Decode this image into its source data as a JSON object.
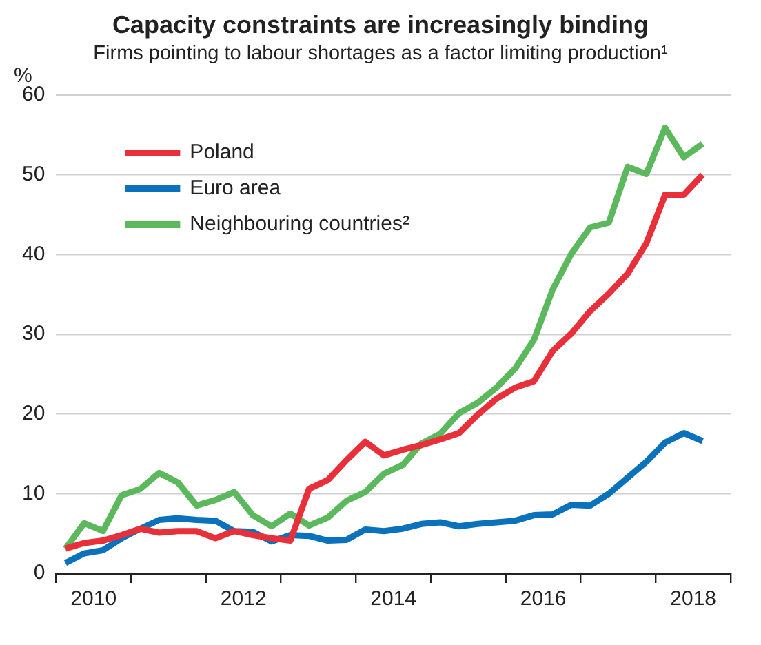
{
  "chart_data": {
    "type": "line",
    "title": "Capacity constraints are increasingly binding",
    "subtitle": "Firms pointing to labour shortages as a factor limiting production¹",
    "ylabel": "%",
    "x": [
      2010.125,
      2010.375,
      2010.625,
      2010.875,
      2011.125,
      2011.375,
      2011.625,
      2011.875,
      2012.125,
      2012.375,
      2012.625,
      2012.875,
      2013.125,
      2013.375,
      2013.625,
      2013.875,
      2014.125,
      2014.375,
      2014.625,
      2014.875,
      2015.125,
      2015.375,
      2015.625,
      2015.875,
      2016.125,
      2016.375,
      2016.625,
      2016.875,
      2017.125,
      2017.375,
      2017.625,
      2017.875,
      2018.125,
      2018.375,
      2018.625
    ],
    "series": [
      {
        "name": "Poland",
        "color": "#e8303a",
        "values": [
          3.1,
          3.8,
          4.1,
          4.8,
          5.6,
          5.1,
          5.3,
          5.3,
          4.4,
          5.3,
          4.8,
          4.4,
          4.1,
          10.6,
          11.7,
          14.2,
          16.5,
          14.8,
          15.5,
          16.1,
          16.8,
          17.6,
          19.9,
          21.9,
          23.3,
          24.1,
          27.9,
          30.1,
          32.9,
          35.1,
          37.6,
          41.4,
          47.5,
          47.5,
          50.0
        ]
      },
      {
        "name": "Euro area",
        "color": "#0a72ba",
        "values": [
          1.3,
          2.5,
          2.9,
          4.4,
          5.6,
          6.7,
          6.9,
          6.7,
          6.6,
          5.3,
          5.2,
          4.0,
          4.8,
          4.7,
          4.1,
          4.2,
          5.5,
          5.3,
          5.6,
          6.2,
          6.4,
          5.9,
          6.2,
          6.4,
          6.6,
          7.3,
          7.4,
          8.6,
          8.5,
          10.0,
          12.0,
          14.0,
          16.4,
          17.6,
          16.6
        ]
      },
      {
        "name": "Neighbouring countries²",
        "color": "#5cb85c",
        "values": [
          3.1,
          6.3,
          5.3,
          9.8,
          10.6,
          12.6,
          11.4,
          8.5,
          9.2,
          10.2,
          7.3,
          5.9,
          7.5,
          6.0,
          7.0,
          9.1,
          10.2,
          12.5,
          13.6,
          16.3,
          17.5,
          20.1,
          21.4,
          23.3,
          25.7,
          29.3,
          35.6,
          40.1,
          43.4,
          44.0,
          51.0,
          50.1,
          55.9,
          52.2,
          53.9
        ]
      }
    ],
    "xlim": [
      2010,
      2019
    ],
    "xticks": [
      {
        "value": 2010,
        "label": null
      },
      {
        "value": 2010.5,
        "label": "2010"
      },
      {
        "value": 2011,
        "label": null
      },
      {
        "value": 2012,
        "label": null
      },
      {
        "value": 2012.5,
        "label": "2012"
      },
      {
        "value": 2013,
        "label": null
      },
      {
        "value": 2014,
        "label": null
      },
      {
        "value": 2014.5,
        "label": "2014"
      },
      {
        "value": 2015,
        "label": null
      },
      {
        "value": 2016,
        "label": null
      },
      {
        "value": 2016.5,
        "label": "2016"
      },
      {
        "value": 2017,
        "label": null
      },
      {
        "value": 2018,
        "label": null
      },
      {
        "value": 2018.5,
        "label": "2018"
      },
      {
        "value": 2019,
        "label": null
      }
    ],
    "ylim": [
      0,
      60
    ],
    "yticks": [
      0,
      10,
      20,
      30,
      40,
      50,
      60
    ],
    "grid": "y",
    "legend": "top left",
    "marker": "none",
    "line_style": "solid"
  }
}
